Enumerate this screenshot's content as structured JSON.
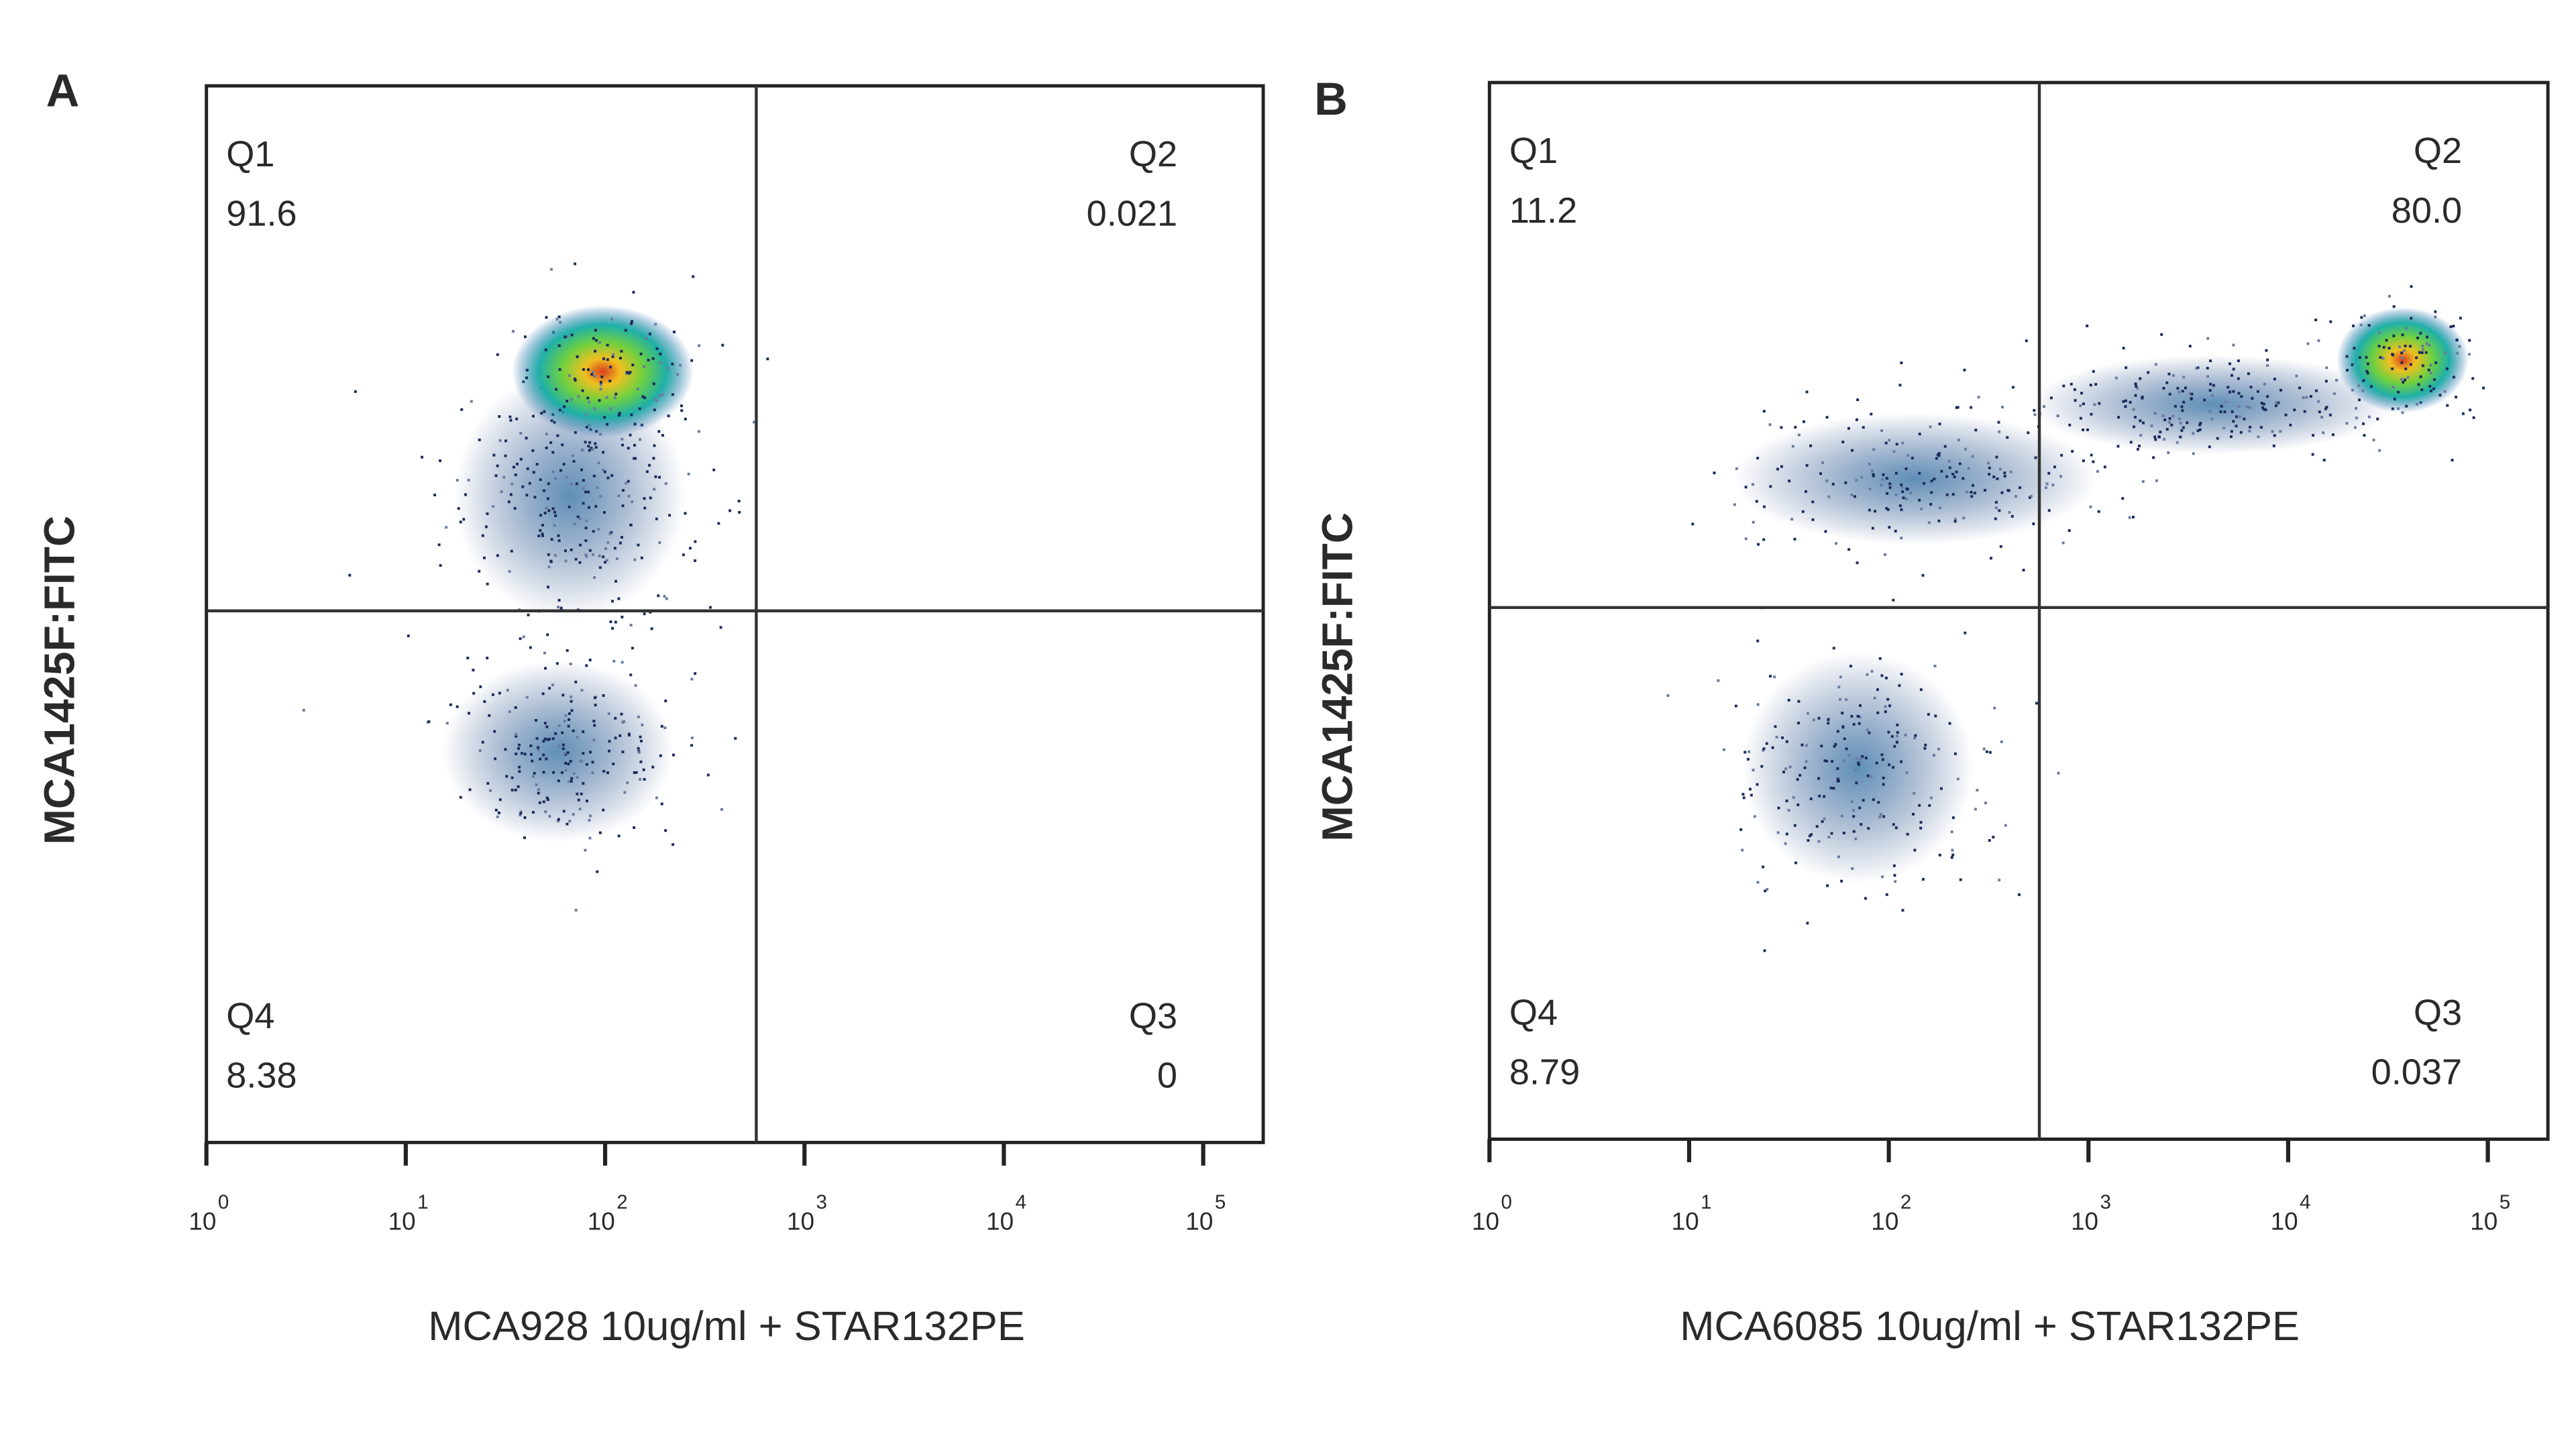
{
  "chart_data": [
    {
      "type": "scatter",
      "panel": "A",
      "x_label": "MCA928 10ug/ml + STAR132PE",
      "y_label": "MCA1425F:FITC",
      "xscale": "log",
      "xlim": [
        1,
        200000
      ],
      "xticks": [
        {
          "value": 1,
          "label": "10",
          "power": "0"
        },
        {
          "value": 10,
          "label": "10",
          "power": "1"
        },
        {
          "value": 100,
          "label": "10",
          "power": "2"
        },
        {
          "value": 1000,
          "label": "10",
          "power": "3"
        },
        {
          "value": 10000,
          "label": "10",
          "power": "4"
        },
        {
          "value": 100000,
          "label": "10",
          "power": "5"
        }
      ],
      "quadrants": [
        {
          "name": "Q1",
          "value": 91.6
        },
        {
          "name": "Q2",
          "value": 0.021
        },
        {
          "name": "Q3",
          "value": 0
        },
        {
          "name": "Q4",
          "value": 8.38
        }
      ]
    },
    {
      "type": "scatter",
      "panel": "B",
      "x_label": "MCA6085 10ug/ml + STAR132PE",
      "y_label": "MCA1425F:FITC",
      "xscale": "log",
      "xlim": [
        1,
        200000
      ],
      "xticks": [
        {
          "value": 1,
          "label": "10",
          "power": "0"
        },
        {
          "value": 10,
          "label": "10",
          "power": "1"
        },
        {
          "value": 100,
          "label": "10",
          "power": "2"
        },
        {
          "value": 1000,
          "label": "10",
          "power": "3"
        },
        {
          "value": 10000,
          "label": "10",
          "power": "4"
        },
        {
          "value": 100000,
          "label": "10",
          "power": "5"
        }
      ],
      "quadrants": [
        {
          "name": "Q1",
          "value": 11.2
        },
        {
          "name": "Q2",
          "value": 80.0,
          "label": "80.0"
        },
        {
          "name": "Q3",
          "value": 0.037
        },
        {
          "name": "Q4",
          "value": 8.79
        }
      ]
    }
  ]
}
